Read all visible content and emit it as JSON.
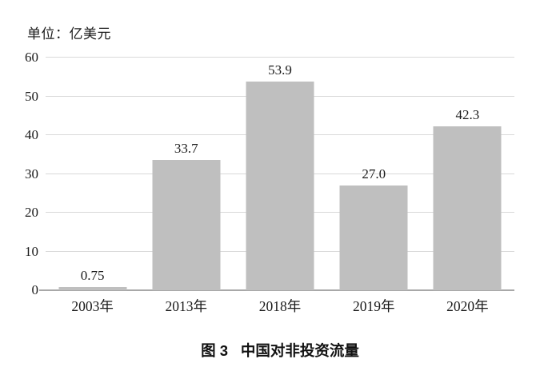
{
  "unit_label": "单位：亿美元",
  "caption": {
    "prefix": "图 3",
    "title": "中国对非投资流量"
  },
  "chart_data": {
    "type": "bar",
    "title": "图 3 中国对非投资流量",
    "unit": "亿美元",
    "categories": [
      "2003年",
      "2013年",
      "2018年",
      "2019年",
      "2020年"
    ],
    "values": [
      0.75,
      33.7,
      53.9,
      27.0,
      42.3
    ],
    "value_labels": [
      "0.75",
      "33.7",
      "53.9",
      "27.0",
      "42.3"
    ],
    "xlabel": "",
    "ylabel": "",
    "ylim": [
      0,
      60
    ],
    "yticks": [
      0,
      10,
      20,
      30,
      40,
      50,
      60
    ],
    "grid": "horizontal",
    "legend": "none",
    "colors": {
      "bar": "#bfbfbf",
      "gridline": "#d9d9d9",
      "axis": "#a8a8a8",
      "text": "#1a1a1a"
    }
  }
}
